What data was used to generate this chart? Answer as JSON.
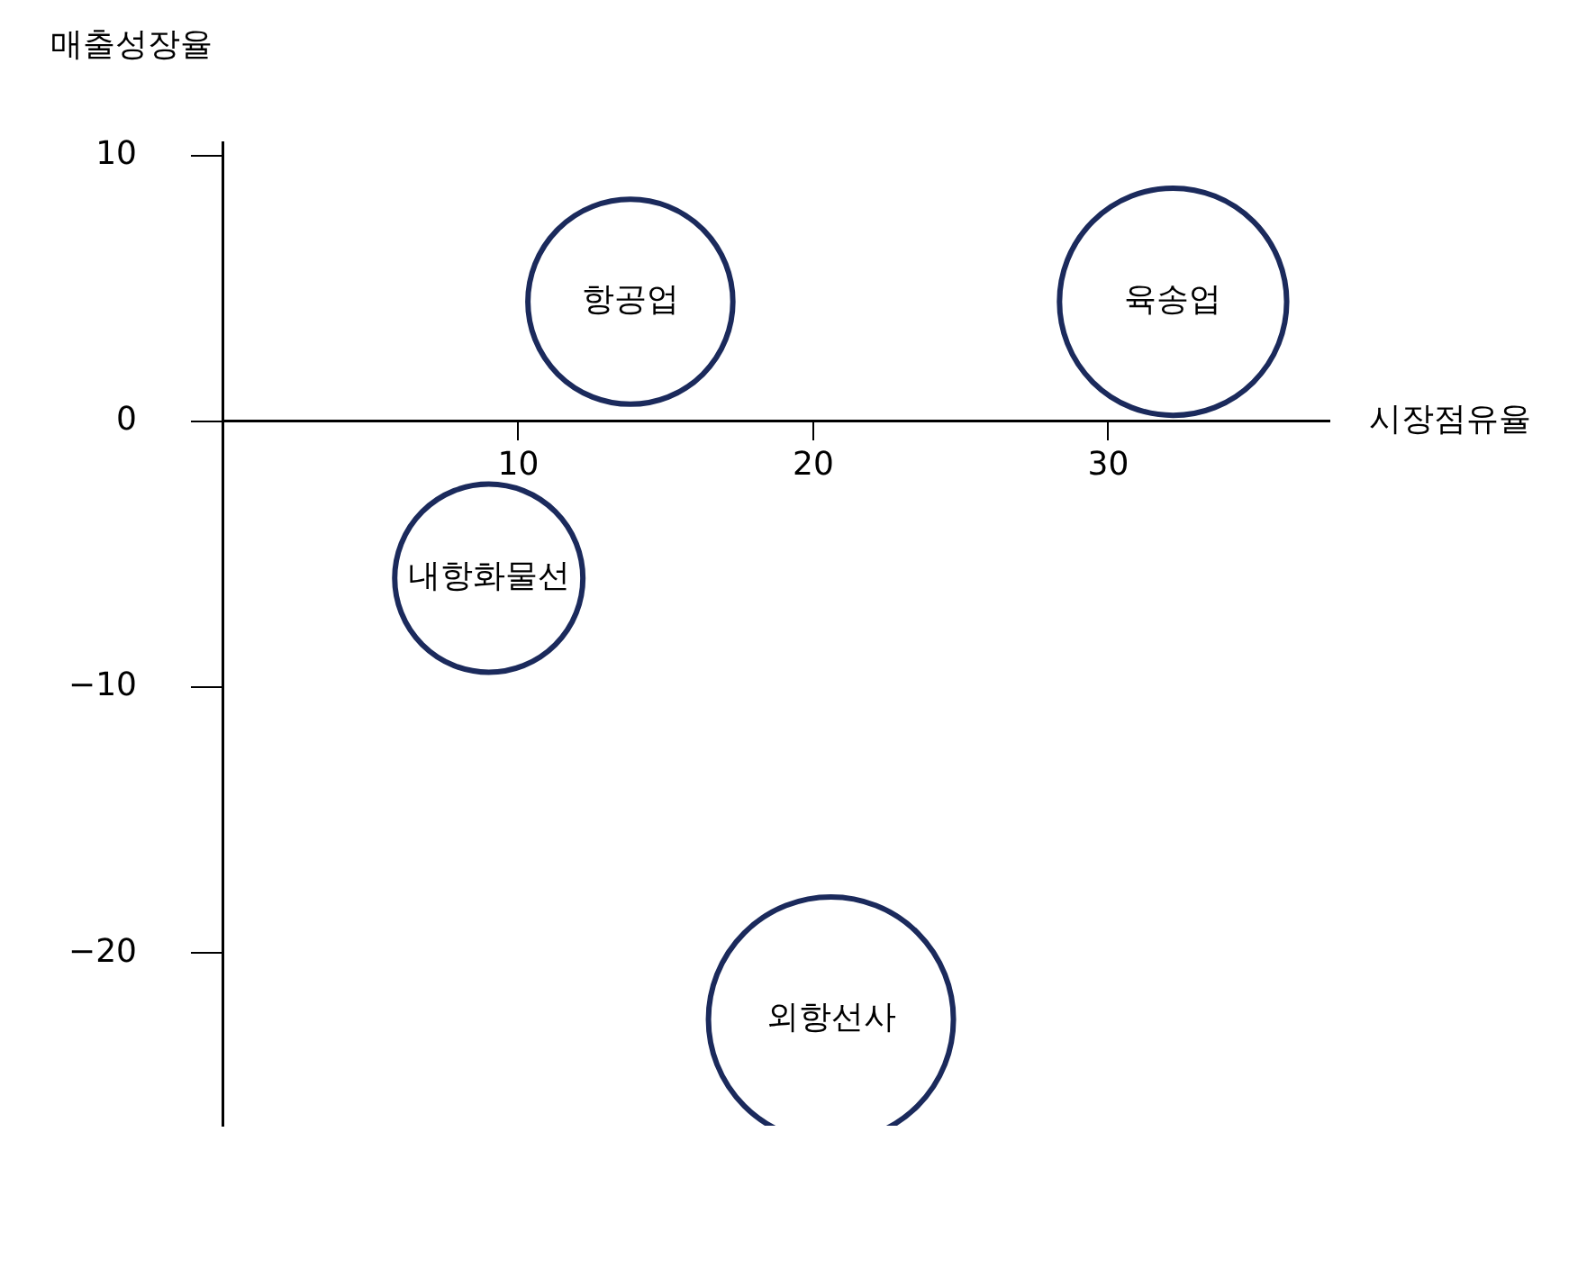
{
  "chart_data": {
    "type": "bubble",
    "xlabel": "시장점유율",
    "ylabel": "매출성장율",
    "xlim": [
      0,
      37.5
    ],
    "ylim": [
      -26.5,
      10.5
    ],
    "xticks": [
      10,
      20,
      30
    ],
    "yticks": [
      -20,
      -10,
      0,
      10
    ],
    "grid": false,
    "legend": false,
    "marker": "circle",
    "series": [
      {
        "name": "항공업",
        "color": "#1b2a5c",
        "x": [
          13.8
        ],
        "values": [
          4.5
        ],
        "sizes": [
          0.7
        ]
      },
      {
        "name": "육송업",
        "color": "#1b2a5c",
        "x": [
          32.2
        ],
        "values": [
          4.5
        ],
        "sizes": [
          0.86
        ]
      },
      {
        "name": "내항화물선",
        "color": "#1b2a5c",
        "x": [
          9
        ],
        "values": [
          -5.9
        ],
        "sizes": [
          0.59
        ]
      },
      {
        "name": "외항선사",
        "color": "#1b2a5c",
        "x": [
          20.6
        ],
        "values": [
          -22.5
        ],
        "sizes": [
          1
        ]
      }
    ]
  }
}
